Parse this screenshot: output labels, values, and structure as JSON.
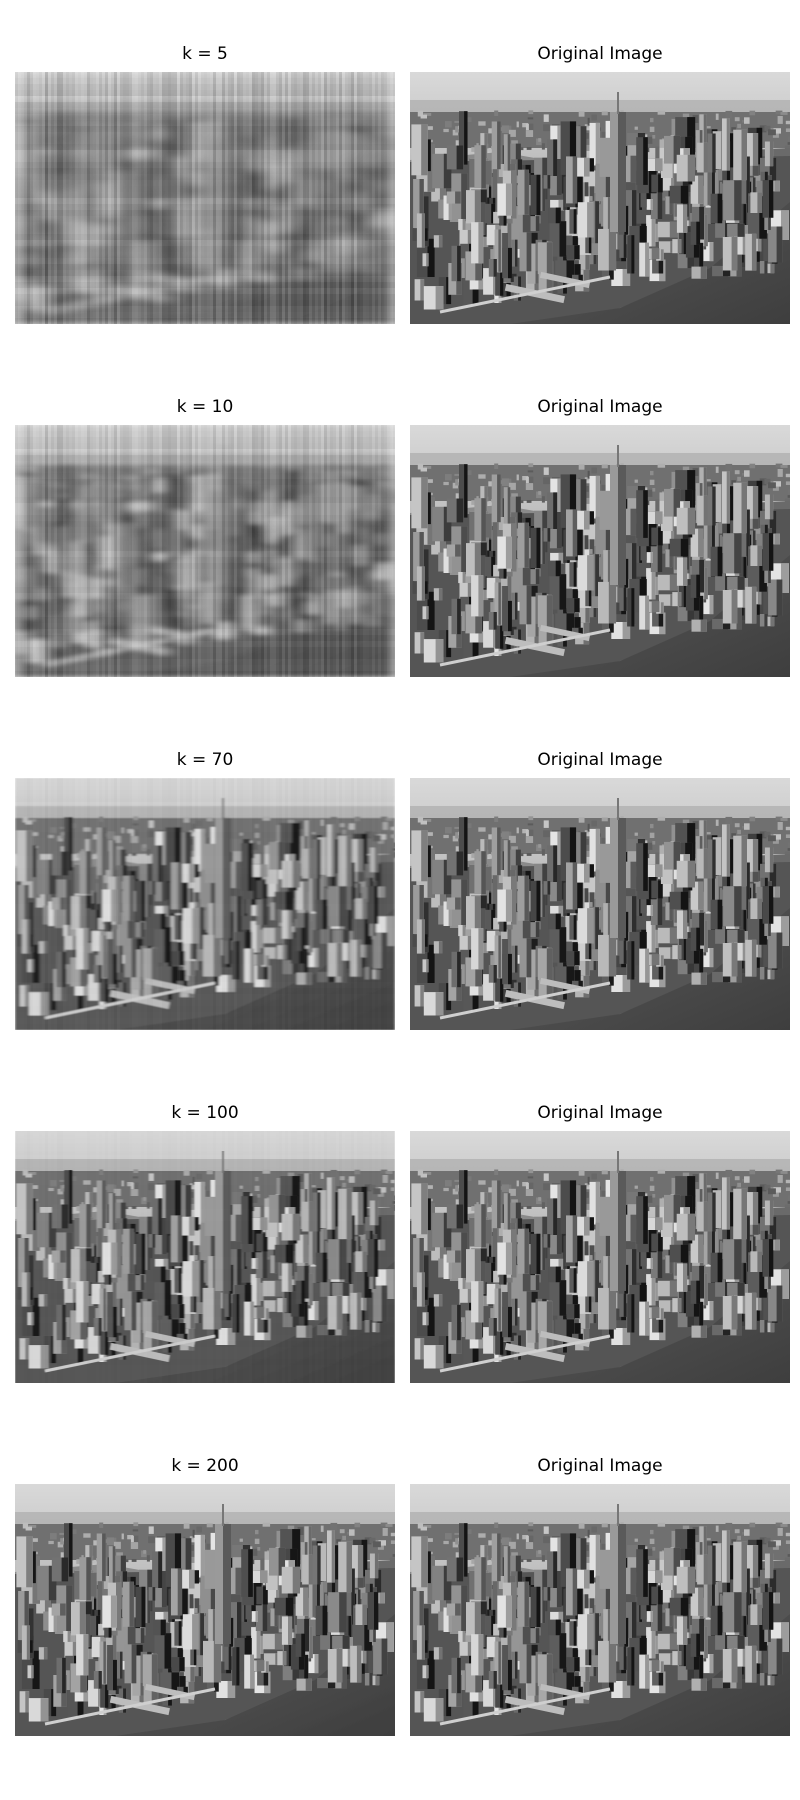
{
  "rows": [
    {
      "left_title": "k = 5",
      "right_title": "Original Image",
      "blur": 9,
      "streaks": 0.55
    },
    {
      "left_title": "k = 10",
      "right_title": "Original Image",
      "blur": 6,
      "streaks": 0.4
    },
    {
      "left_title": "k = 70",
      "right_title": "Original Image",
      "blur": 1.2,
      "streaks": 0.08
    },
    {
      "left_title": "k = 100",
      "right_title": "Original Image",
      "blur": 0.7,
      "streaks": 0.04
    },
    {
      "left_title": "k = 200",
      "right_title": "Original Image",
      "blur": 0.2,
      "streaks": 0.0
    }
  ],
  "scene": {
    "sky_top": "#d9d9d9",
    "sky_bottom": "#8f8f8f",
    "water": "#3e3e3e",
    "land": "#555555"
  }
}
